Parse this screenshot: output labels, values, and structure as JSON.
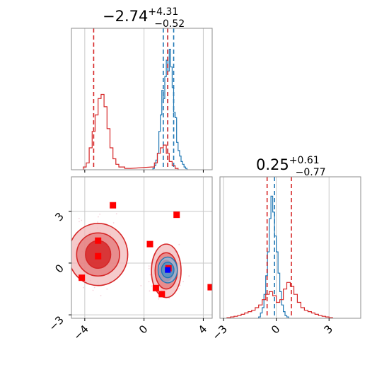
{
  "colors": {
    "blue": "#1f77b4",
    "red": "#d62728",
    "red_fill": "#f2b8b9",
    "red_mid": "#e37778",
    "marker_red": "#ff0000",
    "marker_blue": "#0000ff",
    "grid": "#c8c8c8",
    "frame": "#8c8c8c"
  },
  "chart_data": [
    {
      "panel": "marginal-param-1",
      "type": "histogram",
      "title_main": "−2.74",
      "title_sup": "+4.31",
      "title_sub": "−0.52",
      "xlim": [
        -4.9,
        4.6
      ],
      "grid_x": [
        -4,
        0,
        4
      ],
      "series": [
        {
          "name": "",
          "color": "#1f77b4",
          "bins": [
            0.6,
            0.7,
            0.8,
            0.9,
            1.0,
            1.1,
            1.2,
            1.3,
            1.4,
            1.5,
            1.6,
            1.7,
            1.8,
            1.9,
            2.0,
            2.1,
            2.2,
            2.3,
            2.4,
            2.5,
            2.6,
            2.7,
            2.8
          ],
          "heights": [
            0.01,
            0.03,
            0.07,
            0.12,
            0.28,
            0.4,
            0.58,
            0.52,
            0.68,
            0.8,
            0.72,
            0.88,
            0.75,
            0.6,
            0.42,
            0.38,
            0.2,
            0.14,
            0.1,
            0.06,
            0.04,
            0.02,
            0.01
          ],
          "quantile_lines": [
            1.3,
            1.6,
            2.0
          ]
        },
        {
          "name": "",
          "color": "#d62728",
          "bins": [
            -4.1,
            -3.9,
            -3.7,
            -3.5,
            -3.3,
            -3.1,
            -2.9,
            -2.7,
            -2.5,
            -2.3,
            -2.1,
            -1.9,
            -1.7,
            -1.5,
            -1.3,
            -1.1,
            0.5,
            0.7,
            0.9,
            1.1,
            1.3,
            1.5,
            1.7,
            1.9,
            2.1
          ],
          "heights": [
            0.02,
            0.05,
            0.16,
            0.28,
            0.4,
            0.52,
            0.55,
            0.46,
            0.3,
            0.16,
            0.08,
            0.04,
            0.02,
            0.02,
            0.01,
            0.01,
            0.02,
            0.05,
            0.12,
            0.16,
            0.18,
            0.12,
            0.06,
            0.03,
            0.01
          ],
          "quantile_lines": [
            -3.4,
            1.6
          ]
        }
      ]
    },
    {
      "panel": "marginal-param-2",
      "type": "histogram",
      "title_main": "0.25",
      "title_sup": "+0.61",
      "title_sub": "−0.77",
      "xlim": [
        -3.2,
        4.8
      ],
      "grid_x": [
        -3,
        0,
        3
      ],
      "tick_labels": [
        "−3",
        "0",
        "3"
      ],
      "series": [
        {
          "name": "",
          "color": "#1f77b4",
          "bins": [
            -1.0,
            -0.9,
            -0.8,
            -0.7,
            -0.6,
            -0.5,
            -0.4,
            -0.3,
            -0.2,
            -0.1,
            0.0,
            0.1,
            0.2,
            0.3,
            0.4,
            0.5,
            0.6
          ],
          "heights": [
            0.01,
            0.04,
            0.08,
            0.18,
            0.32,
            0.5,
            0.75,
            0.92,
            0.8,
            0.62,
            0.5,
            0.34,
            0.2,
            0.1,
            0.05,
            0.02,
            0.01
          ],
          "quantile_lines": [
            -0.1
          ]
        },
        {
          "name": "",
          "color": "#d62728",
          "bins": [
            -2.8,
            -2.6,
            -2.4,
            -2.2,
            -2.0,
            -1.8,
            -1.6,
            -1.4,
            -1.2,
            -1.0,
            -0.8,
            -0.6,
            -0.4,
            -0.2,
            0.0,
            0.2,
            0.4,
            0.6,
            0.8,
            1.0,
            1.2,
            1.4,
            1.6,
            1.8,
            2.0,
            2.2,
            2.4,
            2.6,
            2.8,
            3.0
          ],
          "heights": [
            0.005,
            0.01,
            0.015,
            0.02,
            0.03,
            0.04,
            0.05,
            0.06,
            0.08,
            0.1,
            0.14,
            0.18,
            0.2,
            0.17,
            0.12,
            0.14,
            0.22,
            0.27,
            0.24,
            0.18,
            0.12,
            0.08,
            0.06,
            0.05,
            0.04,
            0.03,
            0.02,
            0.015,
            0.01,
            0.005
          ],
          "quantile_lines": [
            -0.52,
            0.86
          ]
        }
      ]
    },
    {
      "panel": "joint-2d",
      "type": "contour-scatter",
      "xlim": [
        -4.9,
        4.6
      ],
      "ylim": [
        -3.2,
        5.0
      ],
      "x_ticks": [
        -4,
        0,
        4
      ],
      "y_ticks": [
        -3,
        0,
        3
      ],
      "x_tick_labels": [
        "−4",
        "0",
        "4"
      ],
      "y_tick_labels": [
        "−3",
        "0",
        "3"
      ],
      "blue_mode": {
        "x": 1.6,
        "y": -0.4
      },
      "red_modes": [
        {
          "x": -3.1,
          "y": 0.5,
          "rx": [
            2.0,
            1.45,
            0.85
          ],
          "ry": [
            1.8,
            1.25,
            0.8
          ]
        },
        {
          "x": 1.5,
          "y": -0.45,
          "rx": [
            1.0,
            0.75,
            0.45
          ],
          "ry": [
            1.55,
            1.05,
            0.6
          ]
        }
      ],
      "blue_contour": {
        "x": 1.6,
        "y": -0.4,
        "rx": [
          0.65,
          0.42
        ],
        "ry": [
          0.75,
          0.45
        ]
      },
      "red_points": [
        {
          "x": -2.1,
          "y": 3.35
        },
        {
          "x": 2.2,
          "y": 2.8
        },
        {
          "x": -3.1,
          "y": 1.3
        },
        {
          "x": 0.4,
          "y": 1.1
        },
        {
          "x": -3.1,
          "y": 0.4
        },
        {
          "x": -4.2,
          "y": -0.85
        },
        {
          "x": 0.8,
          "y": -1.45
        },
        {
          "x": 1.2,
          "y": -1.8
        },
        {
          "x": 4.5,
          "y": -1.4
        },
        {
          "x": 1.65,
          "y": -0.3
        }
      ],
      "blue_points": [
        {
          "x": 1.6,
          "y": -0.4
        }
      ]
    }
  ]
}
